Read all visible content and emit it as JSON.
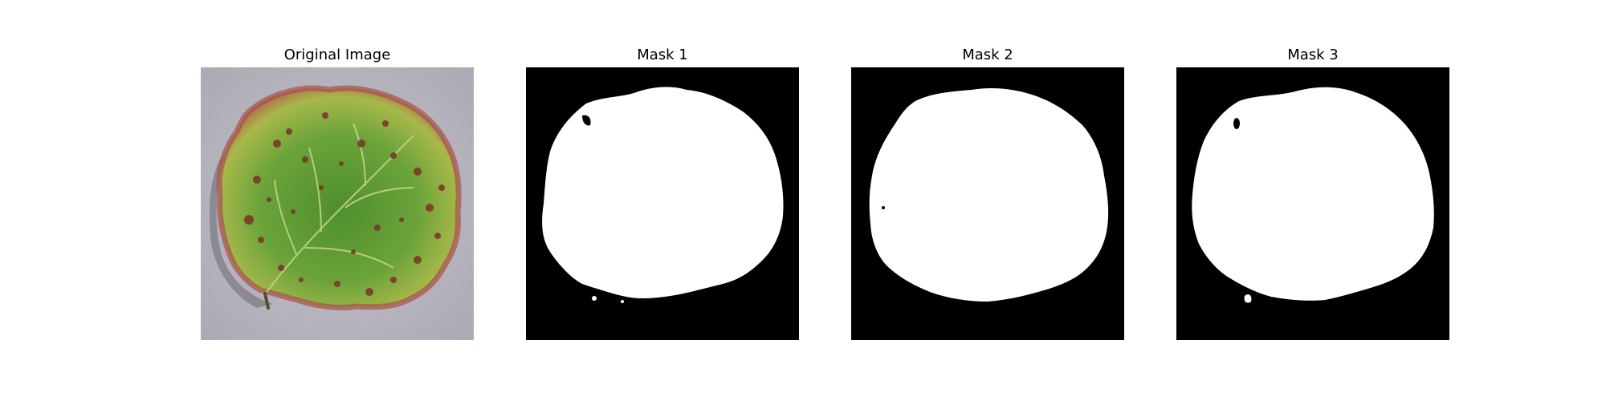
{
  "figure": {
    "panels": [
      {
        "title": "Original Image",
        "content": "leaf-photo"
      },
      {
        "title": "Mask 1",
        "content": "binary-mask"
      },
      {
        "title": "Mask 2",
        "content": "binary-mask"
      },
      {
        "title": "Mask 3",
        "content": "binary-mask"
      }
    ]
  },
  "colors": {
    "figure_background": "#ffffff",
    "mask_background": "#000000",
    "mask_foreground": "#ffffff",
    "photo_background": "#b8b6be",
    "leaf_green": "#5e9a35",
    "leaf_yellow": "#c6c445",
    "leaf_spot": "#7a3228",
    "leaf_edge": "#b0534a"
  }
}
